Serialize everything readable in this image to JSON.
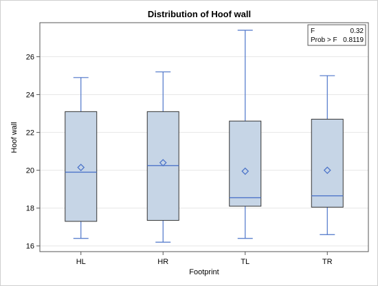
{
  "chart_data": {
    "type": "boxplot",
    "title": "Distribution of Hoof wall",
    "xlabel": "Footprint",
    "ylabel": "Hoof wall",
    "ylim": [
      15.7,
      27.8
    ],
    "yticks": [
      16,
      18,
      20,
      22,
      24,
      26
    ],
    "grid": true,
    "categories": [
      "HL",
      "HR",
      "TL",
      "TR"
    ],
    "boxes": [
      {
        "category": "HL",
        "min": 16.4,
        "q1": 17.3,
        "median": 19.9,
        "q3": 23.1,
        "max": 24.9,
        "mean": 20.15
      },
      {
        "category": "HR",
        "min": 16.2,
        "q1": 17.35,
        "median": 20.25,
        "q3": 23.1,
        "max": 25.2,
        "mean": 20.4
      },
      {
        "category": "TL",
        "min": 16.4,
        "q1": 18.1,
        "median": 18.55,
        "q3": 22.6,
        "max": 27.4,
        "mean": 19.95
      },
      {
        "category": "TR",
        "min": 16.6,
        "q1": 18.05,
        "median": 18.65,
        "q3": 22.7,
        "max": 25.0,
        "mean": 20.0
      }
    ],
    "stats": [
      {
        "label": "F",
        "value": "0.32"
      },
      {
        "label": "Prob > F",
        "value": "0.8119"
      }
    ],
    "colors": {
      "box_fill": "#c6d5e6",
      "box_stroke": "#333333",
      "whisker": "#4c74c9",
      "median": "#4c74c9",
      "mean_marker": "#4c74c9",
      "grid": "#e6e6e6"
    }
  }
}
